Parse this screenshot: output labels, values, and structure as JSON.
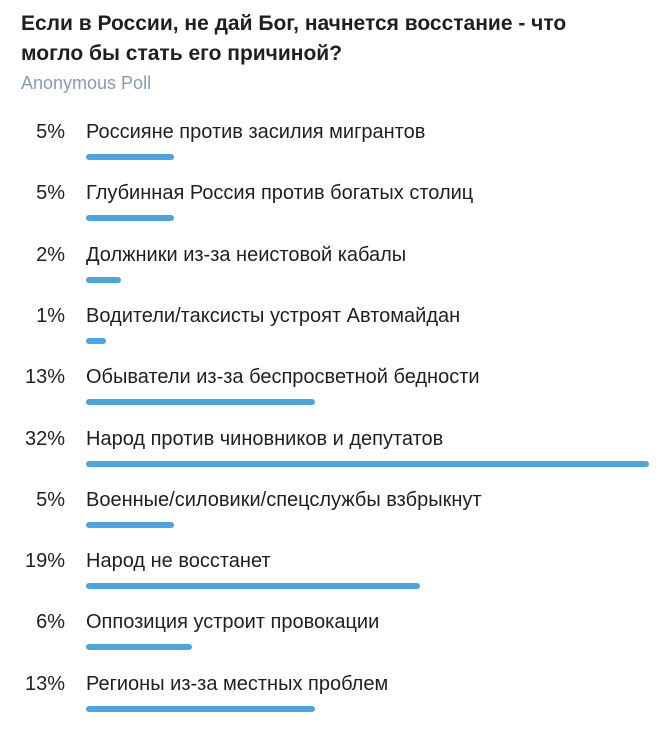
{
  "poll": {
    "question_line1": "Если в России, не дай Бог, начнется восстание - что",
    "question_line2": "могло бы стать его причиной?",
    "type": "Anonymous Poll",
    "bar_color": "#4ea4dc",
    "options": [
      {
        "percent": "5%",
        "value": 5,
        "label": "Россияне против засилия мигрантов"
      },
      {
        "percent": "5%",
        "value": 5,
        "label": "Глубинная Россия против богатых столиц"
      },
      {
        "percent": "2%",
        "value": 2,
        "label": "Должники из-за неистовой кабалы"
      },
      {
        "percent": "1%",
        "value": 1,
        "label": "Водители/таксисты устроят Автомайдан"
      },
      {
        "percent": "13%",
        "value": 13,
        "label": "Обыватели из-за беспросветной бедности"
      },
      {
        "percent": "32%",
        "value": 32,
        "label": "Народ против чиновников и депутатов"
      },
      {
        "percent": "5%",
        "value": 5,
        "label": "Военные/силовики/спецслужбы взбрыкнут"
      },
      {
        "percent": "19%",
        "value": 19,
        "label": "Народ не восстанет"
      },
      {
        "percent": "6%",
        "value": 6,
        "label": "Оппозиция устроит провокации"
      },
      {
        "percent": "13%",
        "value": 13,
        "label": "Регионы из-за местных проблем"
      }
    ]
  }
}
